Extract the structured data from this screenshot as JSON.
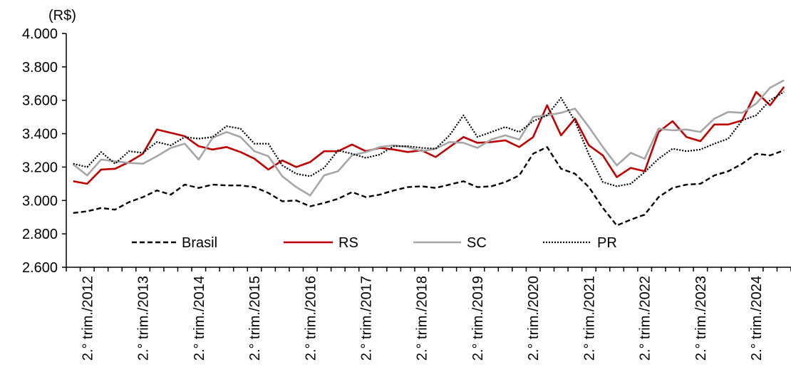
{
  "chart_data": {
    "type": "line",
    "unit_label": "(R$)",
    "ylim": [
      2600,
      4000
    ],
    "yticks": [
      2600,
      2800,
      3000,
      3200,
      3400,
      3600,
      3800,
      4000
    ],
    "ytick_labels": [
      "2.600",
      "2.800",
      "3.000",
      "3.200",
      "3.400",
      "3.600",
      "3.800",
      "4.000"
    ],
    "xtick_labels": [
      "2.° trim./2012",
      "2.° trim./2013",
      "2.° trim./2014",
      "2.° trim./2015",
      "2.° trim./2016",
      "2.° trim./2017",
      "2.° trim./2018",
      "2.° trim./2019",
      "2.° trim./2020",
      "2.° trim./2021",
      "2.° trim./2022",
      "2.° trim./2023",
      "2.° trim./2024"
    ],
    "x": [
      "1.° trim./2012",
      "2.° trim./2012",
      "3.° trim./2012",
      "4.° trim./2012",
      "1.° trim./2013",
      "2.° trim./2013",
      "3.° trim./2013",
      "4.° trim./2013",
      "1.° trim./2014",
      "2.° trim./2014",
      "3.° trim./2014",
      "4.° trim./2014",
      "1.° trim./2015",
      "2.° trim./2015",
      "3.° trim./2015",
      "4.° trim./2015",
      "1.° trim./2016",
      "2.° trim./2016",
      "3.° trim./2016",
      "4.° trim./2016",
      "1.° trim./2017",
      "2.° trim./2017",
      "3.° trim./2017",
      "4.° trim./2017",
      "1.° trim./2018",
      "2.° trim./2018",
      "3.° trim./2018",
      "4.° trim./2018",
      "1.° trim./2019",
      "2.° trim./2019",
      "3.° trim./2019",
      "4.° trim./2019",
      "1.° trim./2020",
      "2.° trim./2020",
      "3.° trim./2020",
      "4.° trim./2020",
      "1.° trim./2021",
      "2.° trim./2021",
      "3.° trim./2021",
      "4.° trim./2021",
      "1.° trim./2022",
      "2.° trim./2022",
      "3.° trim./2022",
      "4.° trim./2022",
      "1.° trim./2023",
      "2.° trim./2023",
      "3.° trim./2023",
      "4.° trim./2023",
      "1.° trim./2024",
      "2.° trim./2024",
      "3.° trim./2024",
      "4.° trim./2024"
    ],
    "legend_position": "lower-inside",
    "grid": false,
    "series": [
      {
        "name": "Brasil",
        "color": "#000000",
        "style": "dashed",
        "values": [
          2925,
          2935,
          2955,
          2945,
          2990,
          3020,
          3060,
          3035,
          3095,
          3075,
          3095,
          3090,
          3090,
          3080,
          3045,
          2995,
          3000,
          2965,
          2985,
          3010,
          3050,
          3020,
          3035,
          3060,
          3080,
          3085,
          3075,
          3095,
          3115,
          3080,
          3085,
          3110,
          3150,
          3280,
          3320,
          3190,
          3160,
          3080,
          2955,
          2850,
          2885,
          2915,
          3020,
          3075,
          3095,
          3100,
          3150,
          3175,
          3220,
          3280,
          3270,
          3300
        ]
      },
      {
        "name": "RS",
        "color": "#c00000",
        "style": "solid",
        "values": [
          3115,
          3100,
          3185,
          3190,
          3230,
          3280,
          3425,
          3405,
          3385,
          3325,
          3305,
          3320,
          3290,
          3250,
          3185,
          3240,
          3200,
          3230,
          3295,
          3295,
          3335,
          3295,
          3315,
          3305,
          3290,
          3300,
          3260,
          3320,
          3380,
          3345,
          3350,
          3360,
          3320,
          3380,
          3570,
          3390,
          3490,
          3330,
          3270,
          3140,
          3195,
          3175,
          3410,
          3475,
          3380,
          3355,
          3455,
          3455,
          3480,
          3650,
          3570,
          3680
        ]
      },
      {
        "name": "SC",
        "color": "#a6a6a6",
        "style": "solid",
        "values": [
          3215,
          3150,
          3245,
          3235,
          3225,
          3220,
          3265,
          3315,
          3340,
          3245,
          3375,
          3410,
          3380,
          3295,
          3265,
          3145,
          3080,
          3030,
          3150,
          3175,
          3270,
          3290,
          3320,
          3330,
          3320,
          3295,
          3310,
          3350,
          3345,
          3315,
          3365,
          3390,
          3365,
          3500,
          3510,
          3525,
          3550,
          3440,
          3320,
          3210,
          3285,
          3250,
          3430,
          3420,
          3425,
          3410,
          3490,
          3530,
          3525,
          3580,
          3675,
          3720
        ]
      },
      {
        "name": "PR",
        "color": "#000000",
        "style": "dotted",
        "values": [
          3220,
          3200,
          3290,
          3220,
          3295,
          3285,
          3350,
          3330,
          3380,
          3370,
          3380,
          3445,
          3430,
          3340,
          3340,
          3210,
          3160,
          3145,
          3195,
          3300,
          3280,
          3255,
          3275,
          3325,
          3325,
          3315,
          3310,
          3390,
          3510,
          3380,
          3410,
          3440,
          3410,
          3475,
          3510,
          3615,
          3475,
          3275,
          3110,
          3085,
          3100,
          3170,
          3250,
          3310,
          3295,
          3305,
          3340,
          3370,
          3480,
          3510,
          3600,
          3650
        ]
      }
    ]
  }
}
